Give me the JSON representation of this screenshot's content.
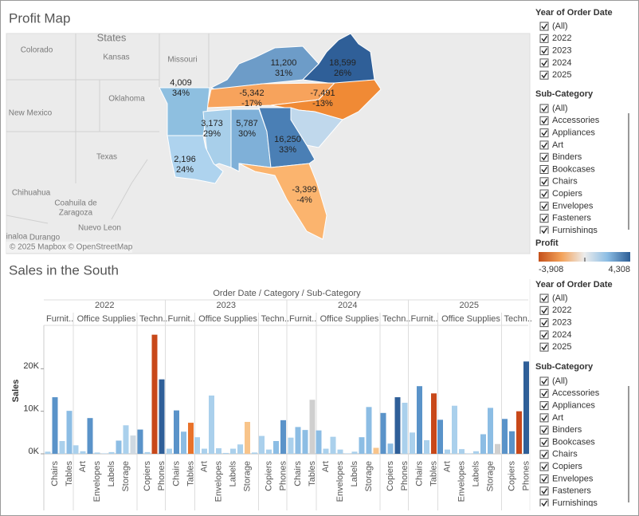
{
  "map": {
    "title": "Profit Map",
    "attribution": "© 2025 Mapbox © OpenStreetMap",
    "place_labels": [
      "States",
      "Colorado",
      "Kansas",
      "Missouri",
      "Oklahoma",
      "New Mexico",
      "Texas",
      "Chihuahua",
      "Coahuila de",
      "Zaragoza",
      "Nuevo Leon",
      "Durango",
      "inaloa"
    ],
    "states": [
      {
        "profit": "11,200",
        "share": "31%",
        "color": "#6d9cc8"
      },
      {
        "profit": "18,599",
        "share": "26%",
        "color": "#2f5f98"
      },
      {
        "profit": "-5,342",
        "share": "-17%",
        "color": "#f7a35c"
      },
      {
        "profit": "-7,491",
        "share": "-13%",
        "color": "#f08a35"
      },
      {
        "profit": "4,009",
        "share": "34%",
        "color": "#8ebfe0"
      },
      {
        "profit": "3,173",
        "share": "29%",
        "color": "#a8cfea"
      },
      {
        "profit": "5,787",
        "share": "30%",
        "color": "#7fb0d8"
      },
      {
        "profit": "16,250",
        "share": "33%",
        "color": "#4a7fb5"
      },
      {
        "profit": "2,196",
        "share": "24%",
        "color": "#aed3ee"
      },
      {
        "profit": "-3,399",
        "share": "-4%",
        "color": "#fbb46e"
      },
      {
        "color": "#c0d8ec"
      }
    ]
  },
  "filters": {
    "year": {
      "title": "Year of Order Date",
      "items": [
        "(All)",
        "2022",
        "2023",
        "2024",
        "2025"
      ]
    },
    "sub_category": {
      "title": "Sub-Category",
      "items": [
        "(All)",
        "Accessories",
        "Appliances",
        "Art",
        "Binders",
        "Bookcases",
        "Chairs",
        "Copiers",
        "Envelopes",
        "Fasteners",
        "Furnishings"
      ]
    },
    "profit_legend": {
      "title": "Profit",
      "min": "-3,908",
      "max": "4,308",
      "gradient": [
        "#c4501a",
        "#f3a25a",
        "#ececec",
        "#8cbde4",
        "#2c5d95"
      ]
    }
  },
  "chart_data": {
    "type": "bar",
    "title": "Sales in the South",
    "x_label": "Order Date / Category / Sub-Category",
    "y_label": "Sales",
    "x_groups": [
      {
        "label": "2022",
        "categories": [
          "Furnit..",
          "Office Supplies",
          "Techn.."
        ]
      },
      {
        "label": "2023",
        "categories": [
          "Furnit..",
          "Office Supplies",
          "Techn.."
        ]
      },
      {
        "label": "2024",
        "categories": [
          "Furnit..",
          "Office Supplies",
          "Techn.."
        ]
      },
      {
        "label": "2025",
        "categories": [
          "Furnit..",
          "Office Supplies",
          "Techn.."
        ]
      }
    ],
    "categories": [
      null,
      "Chairs",
      null,
      "Tables",
      null,
      "Art",
      null,
      "Envelopes",
      null,
      "Labels",
      null,
      "Storage",
      null,
      null,
      "Copiers",
      null,
      "Phones",
      null,
      "Chairs",
      null,
      "Tables",
      null,
      "Art",
      null,
      "Envelopes",
      null,
      "Labels",
      null,
      "Storage",
      null,
      null,
      "Copiers",
      null,
      "Phones",
      null,
      "Chairs",
      null,
      "Tables",
      null,
      "Art",
      null,
      "Envelopes",
      null,
      "Labels",
      null,
      "Storage",
      null,
      null,
      "Copiers",
      null,
      "Phones",
      null,
      "Chairs",
      null,
      "Tables",
      null,
      "Art",
      null,
      "Envelopes",
      null,
      "Labels",
      null,
      "Storage",
      null,
      null,
      "Copiers",
      null,
      "Phones"
    ],
    "values": [
      500,
      13300,
      3000,
      10100,
      2000,
      600,
      8400,
      300,
      100,
      400,
      3100,
      6700,
      4300,
      5700,
      400,
      28000,
      17500,
      1200,
      10200,
      5200,
      7300,
      3900,
      1200,
      13700,
      1300,
      200,
      1200,
      2200,
      7500,
      300,
      4200,
      1000,
      3000,
      7900,
      3800,
      6300,
      5600,
      12700,
      5500,
      1200,
      4000,
      1000,
      100,
      500,
      3900,
      11000,
      1400,
      9600,
      2400,
      13300,
      12000,
      5000,
      15900,
      3200,
      14200,
      8000,
      1000,
      11300,
      1100,
      100,
      600,
      4600,
      10800,
      2300,
      8200,
      5300,
      10000,
      21700
    ],
    "colors": [
      "#aad0ec",
      "#5a93c9",
      "#aad0ec",
      "#8cbde4",
      "#aad0ec",
      "#aad0ec",
      "#5a93c9",
      "#aad0ec",
      "#aad0ec",
      "#aad0ec",
      "#8cbde4",
      "#aad0ec",
      "#cfd9e2",
      "#5a93c9",
      "#aad0ec",
      "#c8481a",
      "#2f5f98",
      "#aad0ec",
      "#5a93c9",
      "#8cbde4",
      "#e8722a",
      "#aad0ec",
      "#aad0ec",
      "#aad0ec",
      "#aad0ec",
      "#aad0ec",
      "#aad0ec",
      "#aad0ec",
      "#f8c48a",
      "#aad0ec",
      "#aad0ec",
      "#aad0ec",
      "#8cbde4",
      "#5a93c9",
      "#aad0ec",
      "#8cbde4",
      "#8cbde4",
      "#cfcfcf",
      "#8cbde4",
      "#aad0ec",
      "#aad0ec",
      "#aad0ec",
      "#aad0ec",
      "#aad0ec",
      "#8cbde4",
      "#8cbde4",
      "#f8c48a",
      "#5a93c9",
      "#8cbde4",
      "#2f5f98",
      "#aad0ec",
      "#aad0ec",
      "#5a93c9",
      "#aad0ec",
      "#c8481a",
      "#5a93c9",
      "#aad0ec",
      "#aad0ec",
      "#aad0ec",
      "#aad0ec",
      "#aad0ec",
      "#8cbde4",
      "#8cbde4",
      "#cfcfcf",
      "#5a93c9",
      "#5a93c9",
      "#c8481a",
      "#2f5f98"
    ],
    "ylim": [
      0,
      30000
    ],
    "yticks": [
      {
        "value": 0,
        "label": "0K"
      },
      {
        "value": 10000,
        "label": "10K"
      },
      {
        "value": 20000,
        "label": "20K"
      }
    ]
  },
  "bottom_filters": {
    "year": {
      "title": "Year of Order Date",
      "items": [
        "(All)",
        "2022",
        "2023",
        "2024",
        "2025"
      ]
    },
    "sub_category": {
      "title": "Sub-Category",
      "items": [
        "(All)",
        "Accessories",
        "Appliances",
        "Art",
        "Binders",
        "Bookcases",
        "Chairs",
        "Copiers",
        "Envelopes",
        "Fasteners",
        "Furnishings"
      ]
    }
  }
}
